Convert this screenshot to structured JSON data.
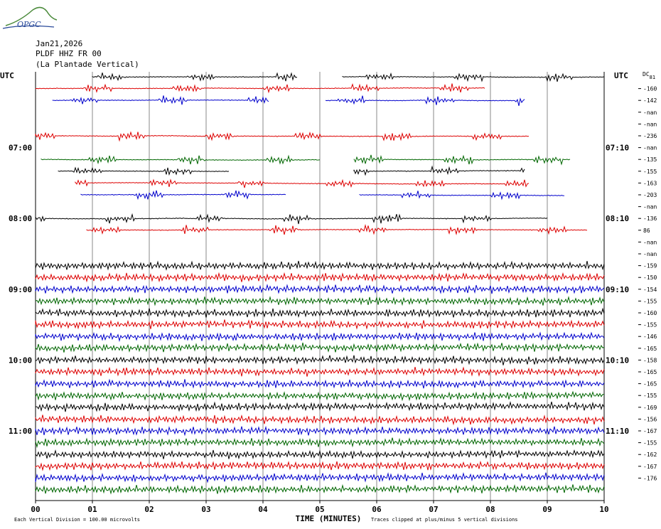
{
  "header": {
    "logo_text": "OPGC",
    "date": "Jan21,2026",
    "channel": "PLDF HHZ FR 00",
    "station_name": "(La Plantade Vertical)"
  },
  "chart_data": {
    "type": "helicorder",
    "left_axis_title": "UTC",
    "right_axis_title": "UTC",
    "dc_label": "DC",
    "dc_sub": "81",
    "xlabel": "TIME (MINUTES)",
    "x_ticks": [
      "00",
      "01",
      "02",
      "03",
      "04",
      "05",
      "06",
      "07",
      "08",
      "09",
      "10"
    ],
    "xlim": [
      0,
      10
    ],
    "left_hour_labels": [
      {
        "row": 6,
        "text": "07:00"
      },
      {
        "row": 12,
        "text": "08:00"
      },
      {
        "row": 18,
        "text": "09:00"
      },
      {
        "row": 24,
        "text": "10:00"
      },
      {
        "row": 30,
        "text": "11:00"
      }
    ],
    "right_hour_labels": [
      {
        "row": 6,
        "text": "07:10"
      },
      {
        "row": 12,
        "text": "08:10"
      },
      {
        "row": 18,
        "text": "09:10"
      },
      {
        "row": 24,
        "text": "10:10"
      },
      {
        "row": 30,
        "text": "11:10"
      }
    ],
    "dc_offsets": [
      "",
      "-160",
      "-142",
      "-nan",
      "-nan",
      "-236",
      "-nan",
      "-135",
      "-155",
      "-163",
      "-203",
      "-nan",
      "-136",
      "86",
      "-nan",
      "-nan",
      "-159",
      "-150",
      "-154",
      "-155",
      "-160",
      "-155",
      "-146",
      "-165",
      "-158",
      "-165",
      "-165",
      "-155",
      "-169",
      "-156",
      "-167",
      "-155",
      "-162",
      "-167",
      "-176"
    ],
    "trace_colors": [
      "#000000",
      "#dd0000",
      "#0000cc",
      "#006600"
    ],
    "rows": [
      {
        "c": 0,
        "segs": [
          [
            1,
            4.6
          ],
          [
            5.4,
            10
          ]
        ]
      },
      {
        "c": 1,
        "segs": [
          [
            0,
            7.9
          ]
        ]
      },
      {
        "c": 2,
        "segs": [
          [
            0.3,
            4.1
          ],
          [
            5.1,
            8.6
          ]
        ]
      },
      {
        "c": 3,
        "segs": []
      },
      {
        "c": 0,
        "segs": []
      },
      {
        "c": 1,
        "segs": [
          [
            0,
            8.7
          ]
        ]
      },
      {
        "c": 2,
        "segs": []
      },
      {
        "c": 3,
        "segs": [
          [
            0.1,
            5
          ],
          [
            5.6,
            9.4
          ]
        ]
      },
      {
        "c": 0,
        "segs": [
          [
            0.4,
            3.4
          ],
          [
            5.6,
            8.6
          ]
        ]
      },
      {
        "c": 1,
        "segs": [
          [
            0.7,
            8.7
          ]
        ]
      },
      {
        "c": 2,
        "segs": [
          [
            0.8,
            4.4
          ],
          [
            5.7,
            9.3
          ]
        ]
      },
      {
        "c": 3,
        "segs": []
      },
      {
        "c": 0,
        "segs": [
          [
            0,
            9
          ]
        ]
      },
      {
        "c": 1,
        "segs": [
          [
            0.9,
            9.7
          ]
        ]
      },
      {
        "c": 2,
        "segs": []
      },
      {
        "c": 3,
        "segs": []
      },
      {
        "c": 0,
        "segs": [
          [
            0,
            10
          ]
        ]
      },
      {
        "c": 1,
        "segs": [
          [
            0,
            10
          ]
        ]
      },
      {
        "c": 2,
        "segs": [
          [
            0,
            10
          ]
        ]
      },
      {
        "c": 3,
        "segs": [
          [
            0,
            10
          ]
        ]
      },
      {
        "c": 0,
        "segs": [
          [
            0,
            10
          ]
        ]
      },
      {
        "c": 1,
        "segs": [
          [
            0,
            10
          ]
        ]
      },
      {
        "c": 2,
        "segs": [
          [
            0,
            10
          ]
        ]
      },
      {
        "c": 3,
        "segs": [
          [
            0,
            10
          ]
        ]
      },
      {
        "c": 0,
        "segs": [
          [
            0,
            10
          ]
        ]
      },
      {
        "c": 1,
        "segs": [
          [
            0,
            10
          ]
        ]
      },
      {
        "c": 2,
        "segs": [
          [
            0,
            10
          ]
        ]
      },
      {
        "c": 3,
        "segs": [
          [
            0,
            10
          ]
        ]
      },
      {
        "c": 0,
        "segs": [
          [
            0,
            10
          ]
        ]
      },
      {
        "c": 1,
        "segs": [
          [
            0,
            10
          ]
        ]
      },
      {
        "c": 2,
        "segs": [
          [
            0,
            10
          ]
        ]
      },
      {
        "c": 3,
        "segs": [
          [
            0,
            10
          ]
        ]
      },
      {
        "c": 0,
        "segs": [
          [
            0,
            10
          ]
        ]
      },
      {
        "c": 1,
        "segs": [
          [
            0,
            10
          ]
        ]
      },
      {
        "c": 2,
        "segs": [
          [
            0,
            10
          ]
        ]
      },
      {
        "c": 3,
        "segs": [
          [
            0,
            10
          ]
        ]
      }
    ]
  },
  "footer": {
    "left_note": "Each Vertical Division =  100.00 microvolts",
    "right_note": "Traces clipped at plus/minus 5 vertical divisions"
  }
}
